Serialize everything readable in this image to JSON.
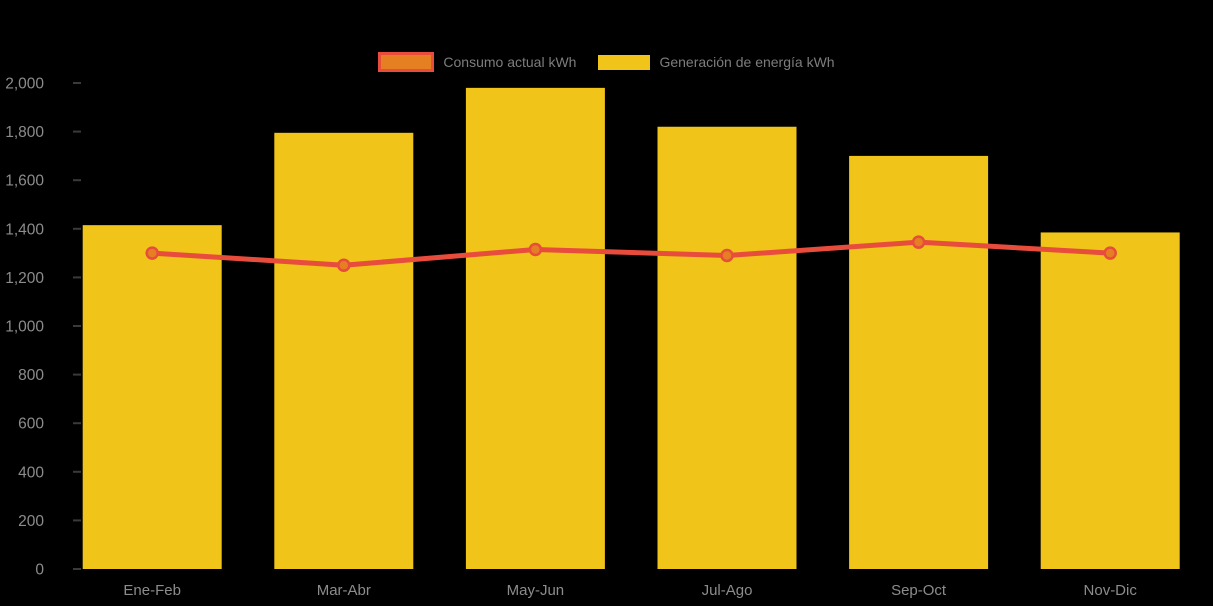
{
  "background_color": "#000000",
  "legend": {
    "items": [
      {
        "label": "Consumo actual kWh",
        "swatch_fill": "#E67E22",
        "swatch_border": "#E74C3C"
      },
      {
        "label": "Generación de energía kWh",
        "swatch_fill": "#F0C419",
        "swatch_border": "#F0C419"
      }
    ]
  },
  "chart_data": {
    "type": "bar",
    "subtype": "bar-with-line-overlay",
    "title": "",
    "xlabel": "",
    "ylabel": "",
    "categories": [
      "Ene-Feb",
      "Mar-Abr",
      "May-Jun",
      "Jul-Ago",
      "Sep-Oct",
      "Nov-Dic"
    ],
    "series": [
      {
        "name": "Generación de energía kWh",
        "type": "bar",
        "values": [
          1415,
          1795,
          1980,
          1820,
          1700,
          1385
        ],
        "color": "#F0C419"
      },
      {
        "name": "Consumo actual kWh",
        "type": "line",
        "values": [
          1300,
          1250,
          1315,
          1290,
          1345,
          1300
        ],
        "color": "#E74C3C",
        "marker_fill": "#E67E22",
        "marker_stroke": "#E74C3C"
      }
    ],
    "ylim": [
      0,
      2000
    ],
    "ytick_step": 200,
    "ytick_labels": [
      "0",
      "200",
      "400",
      "600",
      "800",
      "1,000",
      "1,200",
      "1,400",
      "1,600",
      "1,800",
      "2,000"
    ],
    "grid": false,
    "legend_position": "top-center",
    "axis_label_color": "#8C8C8C",
    "tick_mark_color": "#3A3A3A"
  }
}
